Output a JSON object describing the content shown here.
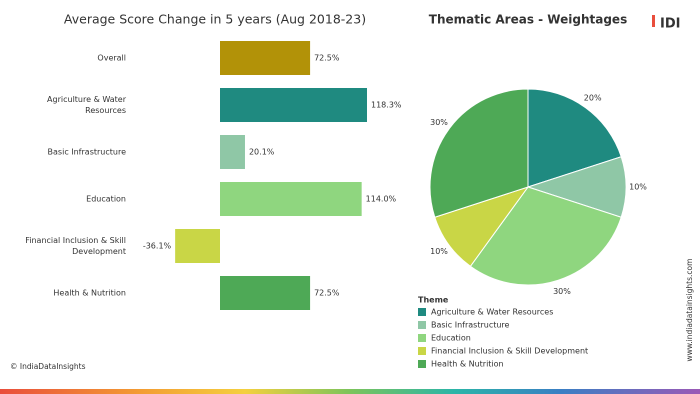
{
  "logo": "IDI",
  "footer": "© IndiaDataInsights",
  "website": "www.indiadatainsights.com",
  "chart_data": [
    {
      "type": "hbar",
      "title": "Average Score Change in 5 years (Aug 2018-23)",
      "categories": [
        "Overall",
        "Agriculture & Water Resources",
        "Basic Infrastructure",
        "Education",
        "Financial Inclusion & Skill Development",
        "Health & Nutrition"
      ],
      "values": [
        72.5,
        118.3,
        20.1,
        114.0,
        -36.1,
        72.5
      ],
      "value_labels": [
        "72.5%",
        "118.3%",
        "20.1%",
        "114.0%",
        "-36.1%",
        "72.5%"
      ],
      "colors": [
        "#b29208",
        "#1f8a80",
        "#8fc7a6",
        "#8fd67f",
        "#c9d646",
        "#4ea956"
      ]
    },
    {
      "type": "pie",
      "title": "Thematic Areas - Weightages",
      "legend_title": "Theme",
      "categories": [
        "Agriculture & Water Resources",
        "Basic Infrastructure",
        "Education",
        "Financial Inclusion & Skill Development",
        "Health & Nutrition"
      ],
      "values": [
        20,
        10,
        30,
        10,
        30
      ],
      "value_labels": [
        "20%",
        "10%",
        "30%",
        "10%",
        "30%"
      ],
      "colors": [
        "#1f8a80",
        "#8fc7a6",
        "#8fd67f",
        "#c9d646",
        "#4ea956"
      ]
    }
  ]
}
